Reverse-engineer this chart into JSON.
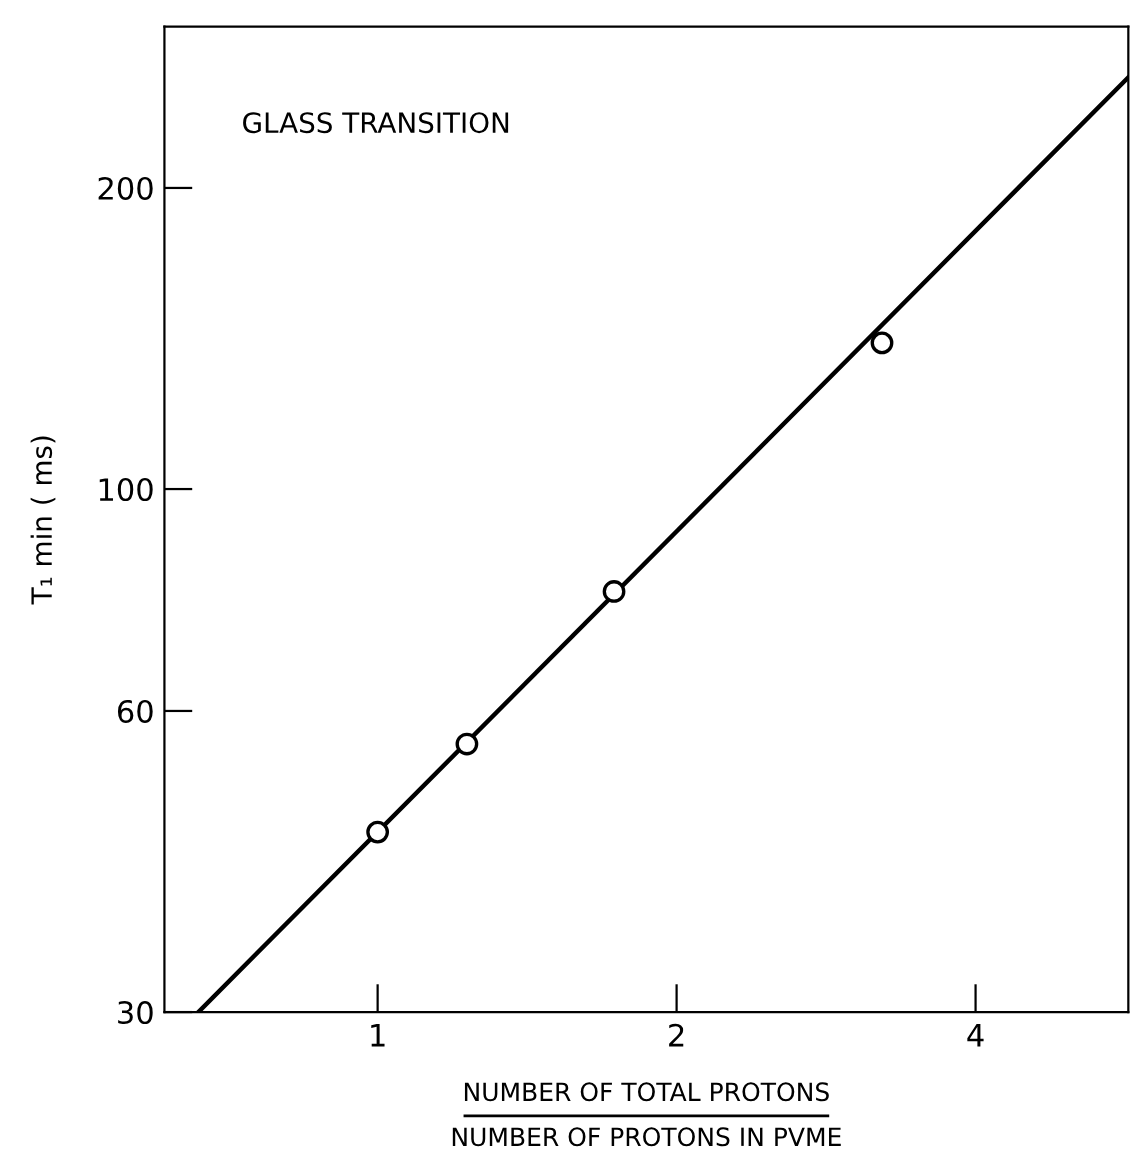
{
  "chart_data": {
    "type": "line",
    "xlabel": "NUMBER OF TOTAL PROTONS\nNUMBER OF PROTONS IN PVME",
    "ylabel": "T₁ min ( ms)",
    "annotations": [
      "GLASS TRANSITION"
    ],
    "log": "xy",
    "series": [
      {
        "type": "scatter",
        "marker": "circle",
        "color": "#000000",
        "x": [
          1.0,
          1.23,
          1.73,
          3.22
        ],
        "values": [
          45.4,
          55.6,
          79,
          140
        ]
      },
      {
        "color": "#000000",
        "x": [
          0.66,
          5.7
        ],
        "values": [
          30,
          258
        ]
      }
    ],
    "xlim": [
      0.61,
      5.7
    ],
    "xticks": [
      1,
      2,
      4
    ],
    "ylim": [
      30,
      290
    ],
    "yticks": [
      30,
      60,
      100,
      200
    ],
    "grid": false,
    "legend": false
  }
}
